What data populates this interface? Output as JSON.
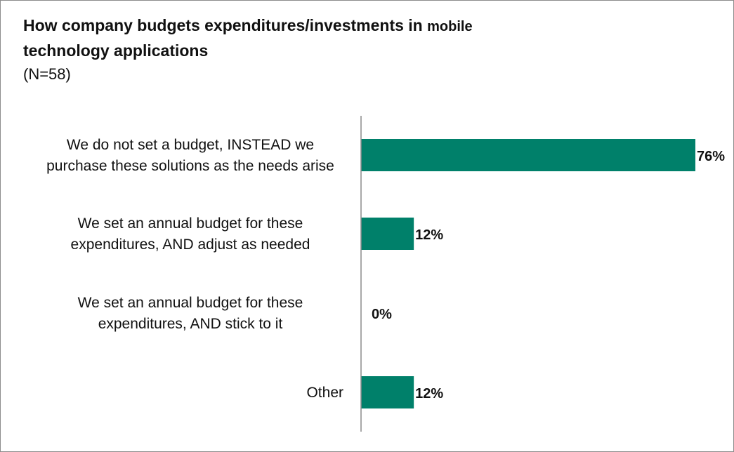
{
  "header": {
    "title_main": "How company budgets expenditures/investments in",
    "title_small": "mobile",
    "title_line2": "technology applications",
    "subtitle": "(N=58)"
  },
  "chart_data": {
    "type": "bar",
    "orientation": "horizontal",
    "title": "How company budgets expenditures/investments in mobile technology applications",
    "subtitle": "(N=58)",
    "categories": [
      [
        "We do not set a budget, INSTEAD we",
        "purchase these solutions as the needs arise"
      ],
      [
        "We set an annual budget for these",
        "expenditures, AND adjust as needed"
      ],
      [
        "We set an annual budget for these",
        "expenditures, AND stick to it"
      ],
      [
        "Other"
      ]
    ],
    "values": [
      76,
      12,
      0,
      12
    ],
    "value_labels": [
      "76%",
      "12%",
      "0%",
      "12%"
    ],
    "unit": "%",
    "xlim": [
      0,
      76
    ],
    "grid": false,
    "legend": "none",
    "bar_color": "#00806a"
  }
}
